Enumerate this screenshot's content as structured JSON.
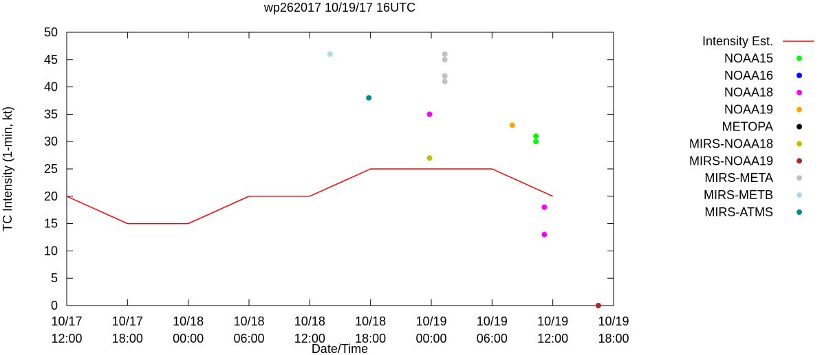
{
  "chart_data": {
    "type": "scatter",
    "title": "wp262017 10/19/17 16UTC",
    "xlabel": "Date/Time",
    "ylabel": "TC Intensity (1-min, kt)",
    "ylim": [
      0,
      50
    ],
    "yticks": [
      0,
      5,
      10,
      15,
      20,
      25,
      30,
      35,
      40,
      45,
      50
    ],
    "xlim": [
      "2017-10-17 12:00",
      "2017-10-19 18:00"
    ],
    "xticks": [
      {
        "t": "2017-10-17 12:00",
        "line1": "10/17",
        "line2": "12:00"
      },
      {
        "t": "2017-10-17 18:00",
        "line1": "10/17",
        "line2": "18:00"
      },
      {
        "t": "2017-10-18 00:00",
        "line1": "10/18",
        "line2": "00:00"
      },
      {
        "t": "2017-10-18 06:00",
        "line1": "10/18",
        "line2": "06:00"
      },
      {
        "t": "2017-10-18 12:00",
        "line1": "10/18",
        "line2": "12:00"
      },
      {
        "t": "2017-10-18 18:00",
        "line1": "10/18",
        "line2": "18:00"
      },
      {
        "t": "2017-10-19 00:00",
        "line1": "10/19",
        "line2": "00:00"
      },
      {
        "t": "2017-10-19 06:00",
        "line1": "10/19",
        "line2": "06:00"
      },
      {
        "t": "2017-10-19 12:00",
        "line1": "10/19",
        "line2": "12:00"
      },
      {
        "t": "2017-10-19 18:00",
        "line1": "10/19",
        "line2": "18:00"
      }
    ],
    "legend_position": "right",
    "series": [
      {
        "name": "Intensity Est.",
        "kind": "line",
        "color": "#ff0000",
        "points": [
          {
            "t": "2017-10-17 12:00",
            "y": 20
          },
          {
            "t": "2017-10-17 18:00",
            "y": 15
          },
          {
            "t": "2017-10-18 00:00",
            "y": 15
          },
          {
            "t": "2017-10-18 06:00",
            "y": 20
          },
          {
            "t": "2017-10-18 12:00",
            "y": 20
          },
          {
            "t": "2017-10-18 18:00",
            "y": 25
          },
          {
            "t": "2017-10-19 06:00",
            "y": 25
          },
          {
            "t": "2017-10-19 12:00",
            "y": 20
          }
        ]
      },
      {
        "name": "NOAA15",
        "kind": "point",
        "color": "#00ff00",
        "points": [
          {
            "t": "2017-10-19 10:20",
            "y": 31
          },
          {
            "t": "2017-10-19 10:20",
            "y": 30
          }
        ]
      },
      {
        "name": "NOAA16",
        "kind": "point",
        "color": "#0000ff",
        "points": []
      },
      {
        "name": "NOAA18",
        "kind": "point",
        "color": "#ff00ff",
        "points": [
          {
            "t": "2017-10-18 23:50",
            "y": 35
          },
          {
            "t": "2017-10-19 11:10",
            "y": 18
          },
          {
            "t": "2017-10-19 11:10",
            "y": 13
          }
        ]
      },
      {
        "name": "NOAA19",
        "kind": "point",
        "color": "#ffa500",
        "points": [
          {
            "t": "2017-10-19 08:00",
            "y": 33
          }
        ]
      },
      {
        "name": "METOPA",
        "kind": "point",
        "color": "#000000",
        "points": []
      },
      {
        "name": "MIRS-NOAA18",
        "kind": "point",
        "color": "#c0c000",
        "points": [
          {
            "t": "2017-10-18 23:50",
            "y": 27
          }
        ]
      },
      {
        "name": "MIRS-NOAA19",
        "kind": "point",
        "color": "#a52a2a",
        "points": [
          {
            "t": "2017-10-19 16:30",
            "y": 0
          }
        ]
      },
      {
        "name": "MIRS-META",
        "kind": "point",
        "color": "#c0c0c0",
        "points": [
          {
            "t": "2017-10-19 01:20",
            "y": 46
          },
          {
            "t": "2017-10-19 01:20",
            "y": 45
          },
          {
            "t": "2017-10-19 01:20",
            "y": 42
          },
          {
            "t": "2017-10-19 01:20",
            "y": 41
          }
        ]
      },
      {
        "name": "MIRS-METB",
        "kind": "point",
        "color": "#add8e6",
        "points": [
          {
            "t": "2017-10-18 14:00",
            "y": 46
          }
        ]
      },
      {
        "name": "MIRS-ATMS",
        "kind": "point",
        "color": "#008b8b",
        "points": [
          {
            "t": "2017-10-18 17:50",
            "y": 38
          }
        ]
      }
    ]
  }
}
